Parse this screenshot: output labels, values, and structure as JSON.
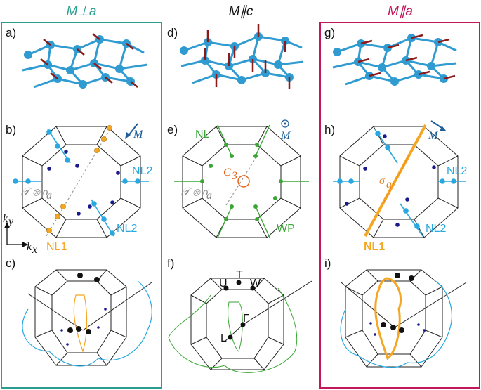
{
  "columns": [
    {
      "header": "M⊥a",
      "header_color": "#2a9d8f",
      "border_color": "#2a9d8f",
      "panels": [
        "a)",
        "b)",
        "c)"
      ],
      "annotations": {
        "moment": "M",
        "nl2_top": "NL2",
        "nl2_bottom": "NL2",
        "nl1": "NL1",
        "symmetry": "𝒯 ⊗ σ",
        "symmetry_sub": "a",
        "ky": "k",
        "ky_sub": "y",
        "kx": "k",
        "kx_sub": "x"
      }
    },
    {
      "header": "M∥c",
      "header_color": "#111111",
      "border_color": "none",
      "panels": [
        "d)",
        "e)",
        "f)"
      ],
      "annotations": {
        "nl": "NL",
        "moment": "M",
        "c3": "C",
        "c3_sub": "3",
        "symmetry": "𝒯 ⊗ σ",
        "symmetry_sub": "a",
        "wp": "WP",
        "point_t": "T",
        "point_u": "U",
        "point_w": "W",
        "point_gamma": "Γ",
        "point_l": "L"
      }
    },
    {
      "header": "M∥a",
      "header_color": "#c2185b",
      "border_color": "#c2185b",
      "panels": [
        "g)",
        "h)",
        "i)"
      ],
      "annotations": {
        "moment": "M",
        "sigma": "σ",
        "sigma_sub": "a",
        "nl2_top": "NL2",
        "nl2_bottom": "NL2",
        "nl1": "NL1"
      }
    }
  ],
  "colors": {
    "atom": "#2f9bd0",
    "bond": "#2f9bd0",
    "spin": "#8b1a1a",
    "nl_blue": "#29a8e0",
    "nl_orange": "#f5a623",
    "nl_green": "#3aa635",
    "weyl_dot": "#1a1a8c",
    "moment_arrow": "#1f5e99",
    "sigma_text": "#e8801a",
    "c3_color": "#e8621a"
  }
}
